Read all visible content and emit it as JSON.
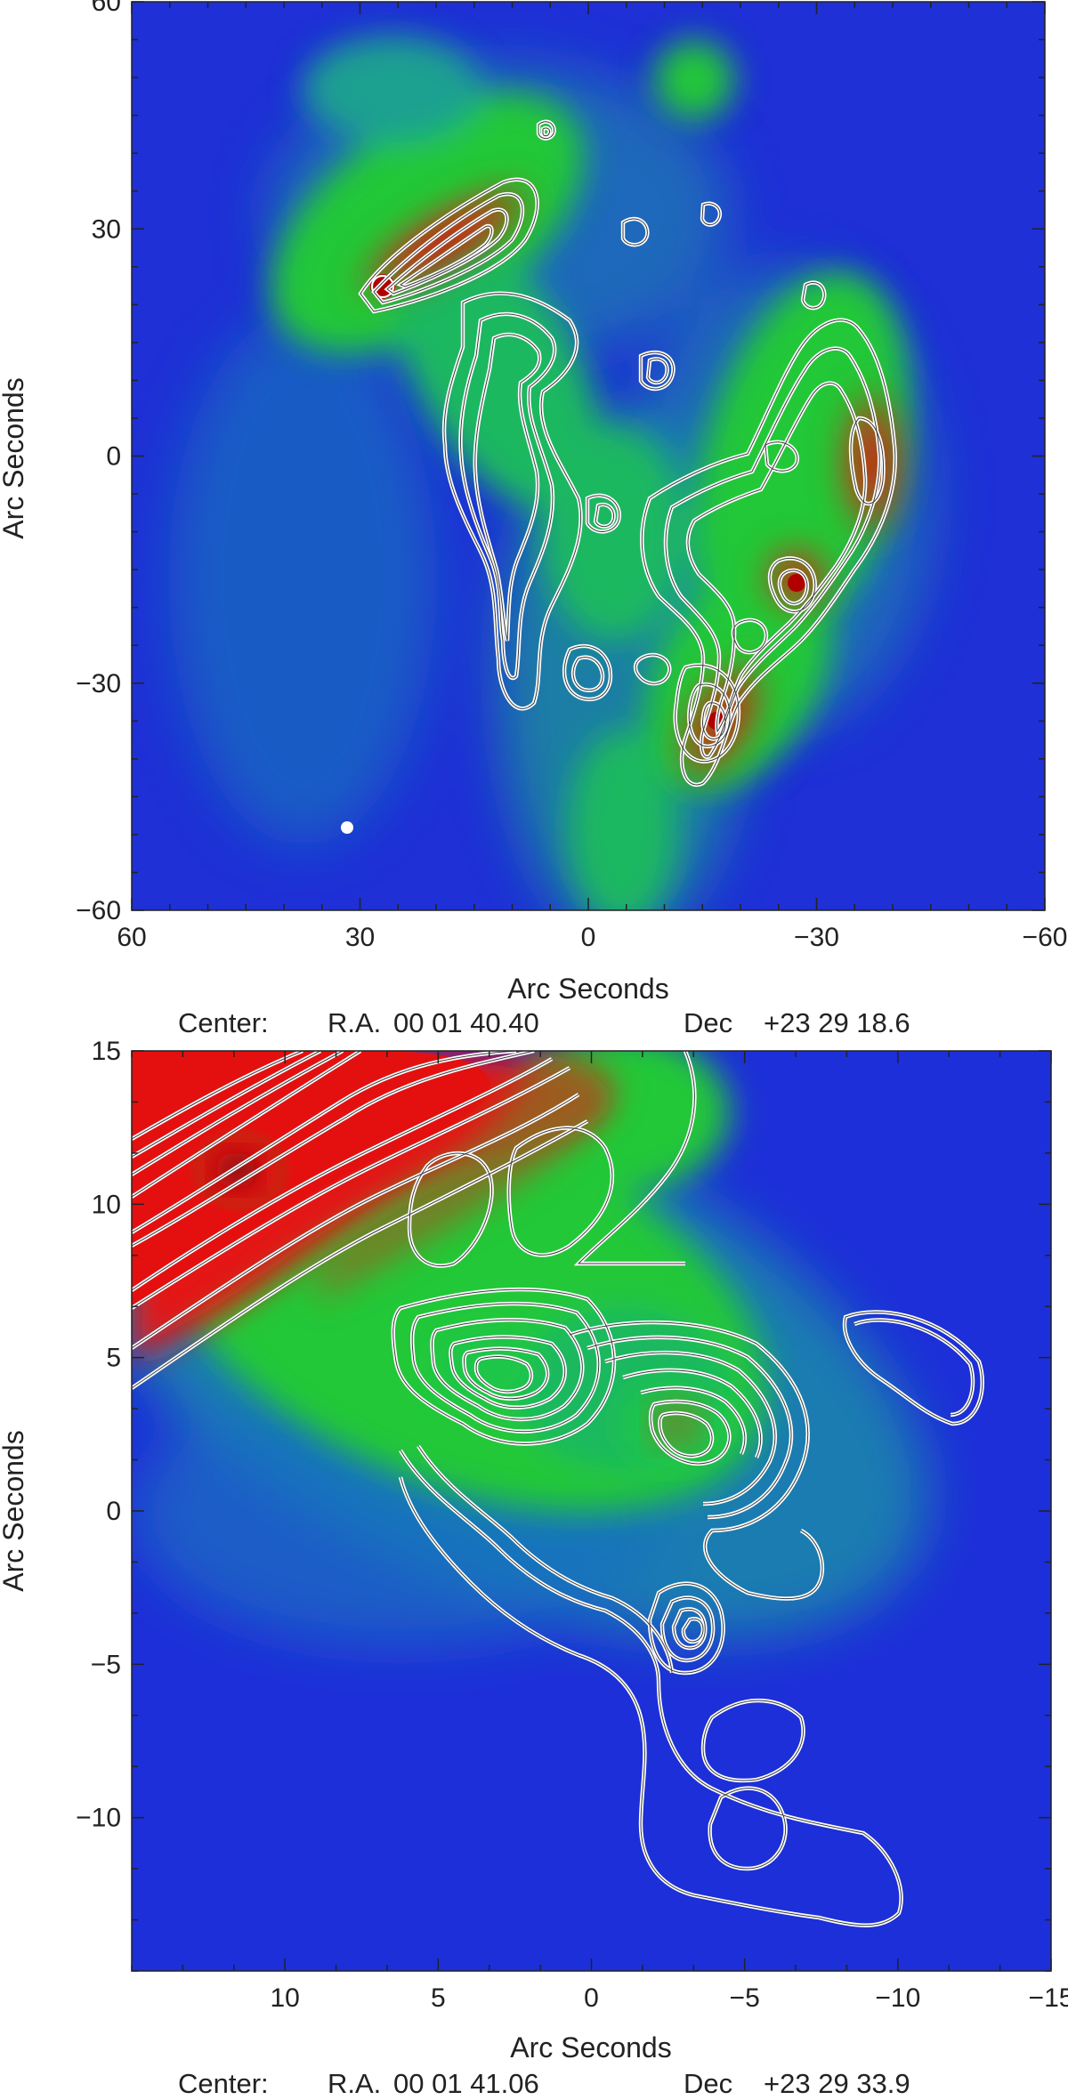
{
  "chart_data": [
    {
      "type": "heatmap",
      "xlabel": "Arc Seconds",
      "ylabel": "Arc Seconds",
      "xlim": [
        60,
        -60
      ],
      "ylim": [
        -60,
        60
      ],
      "x_ticks": [
        60,
        30,
        0,
        -30,
        -60
      ],
      "x_tick_labels": [
        "60",
        "30",
        "0",
        "−30",
        "−60"
      ],
      "y_ticks": [
        60,
        30,
        0,
        -30,
        -60
      ],
      "y_tick_labels": [
        "60",
        "30",
        "0",
        "−30",
        "−60"
      ],
      "caption": {
        "label": "Center:",
        "ra_label": "R.A.",
        "ra_value": "00 01 40.40",
        "dec_label": "Dec",
        "dec_value": "+23 29 18.6"
      },
      "colormap": [
        "#1c2fd8",
        "#14a0b0",
        "#22d830",
        "#8c6a20",
        "#e01010"
      ],
      "contour_color": "#ffffff",
      "intensity_peaks": [
        {
          "x": 24,
          "y": 29,
          "level": 1.0
        },
        {
          "x": 12,
          "y": 35,
          "level": 0.9
        },
        {
          "x": -39,
          "y": 0,
          "level": 0.75
        },
        {
          "x": -29,
          "y": -17,
          "level": 0.8
        },
        {
          "x": -18,
          "y": -34,
          "level": 0.8
        }
      ]
    },
    {
      "type": "heatmap",
      "xlabel": "Arc Seconds",
      "ylabel": "Arc Seconds",
      "xlim": [
        15,
        -15
      ],
      "ylim": [
        -15,
        15
      ],
      "x_ticks": [
        10,
        5,
        0,
        -5,
        -10,
        -15
      ],
      "x_tick_labels": [
        "10",
        "5",
        "0",
        "−5",
        "−10",
        "−15"
      ],
      "y_ticks": [
        15,
        10,
        5,
        0,
        -5,
        -10
      ],
      "y_tick_labels": [
        "15",
        "10",
        "5",
        "0",
        "−5",
        "−10"
      ],
      "caption": {
        "label": "Center:",
        "ra_label": "R.A.",
        "ra_value": "00 01 41.06",
        "dec_label": "Dec",
        "dec_value": "+23 29 33.9"
      },
      "colormap": [
        "#1c2fd8",
        "#14a0b0",
        "#22d830",
        "#8c6a20",
        "#e01010"
      ],
      "contour_color": "#ffffff",
      "intensity_peaks": [
        {
          "x": 11.5,
          "y": 11.5,
          "level": 1.0
        },
        {
          "x": 3,
          "y": 5,
          "level": 0.55
        },
        {
          "x": -3,
          "y": 3,
          "level": 0.55
        }
      ]
    }
  ]
}
